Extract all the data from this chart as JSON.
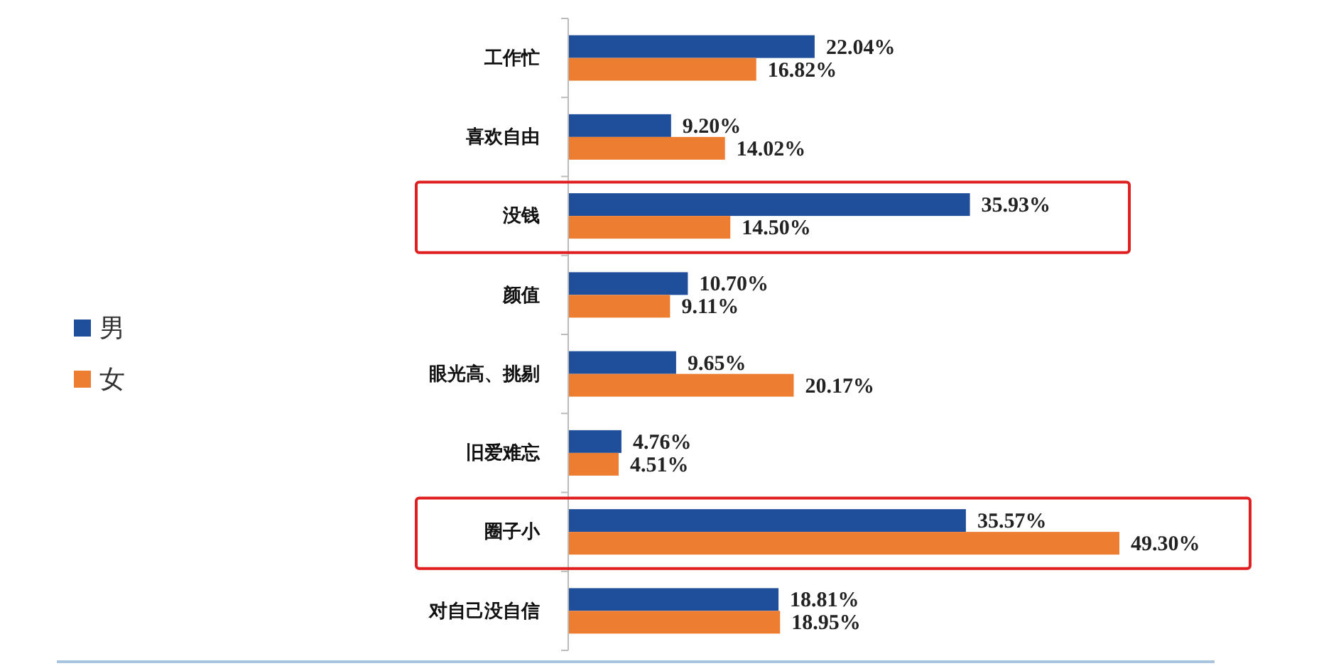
{
  "chart_data": {
    "type": "bar",
    "orientation": "horizontal",
    "categories": [
      "工作忙",
      "喜欢自由",
      "没钱",
      "颜值",
      "眼光高、挑剔",
      "旧爱难忘",
      "圈子小",
      "对自己没自信"
    ],
    "series": [
      {
        "name": "男",
        "color": "#1f4e9a",
        "values": [
          22.04,
          9.2,
          35.93,
          10.7,
          9.65,
          4.76,
          35.57,
          18.81
        ],
        "value_labels": [
          "22.04%",
          "9.20%",
          "35.93%",
          "10.70%",
          "9.65%",
          "4.76%",
          "35.57%",
          "18.81%"
        ]
      },
      {
        "name": "女",
        "color": "#ed7d31",
        "values": [
          16.82,
          14.02,
          14.5,
          9.11,
          20.17,
          4.51,
          49.3,
          18.95
        ],
        "value_labels": [
          "16.82%",
          "14.02%",
          "14.50%",
          "9.11%",
          "20.17%",
          "4.51%",
          "49.30%",
          "18.95%"
        ]
      }
    ],
    "legend": "left",
    "grid": false
  }
}
